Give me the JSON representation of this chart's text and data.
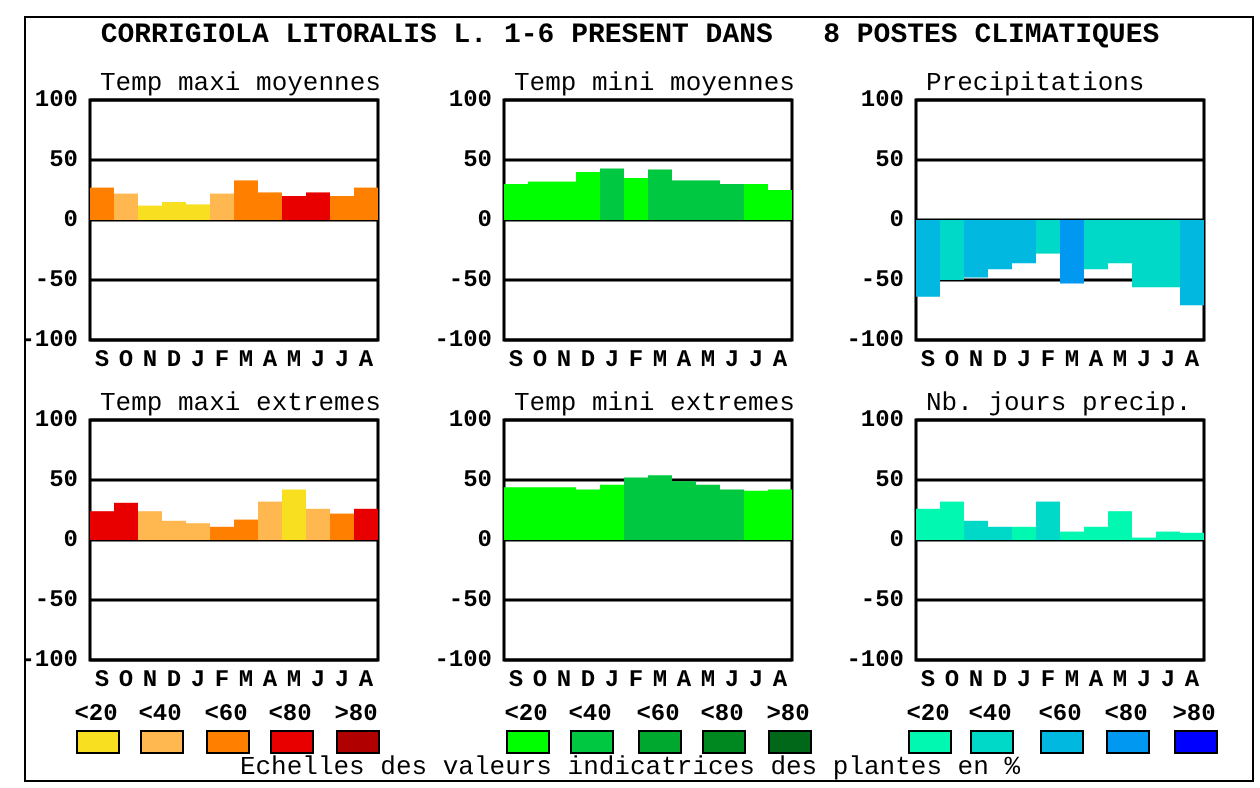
{
  "chart_data": [
    {
      "type": "other",
      "title": "CORRIGIOLA LITORALIS L. 1-6 PRESENT DANS   8 POSTES CLIMATIQUES",
      "annotations": [
        "Echelles des valeurs indicatrices des plantes en %"
      ]
    },
    {
      "type": "bar",
      "title": "Temp maxi moyennes",
      "categories": [
        "S",
        "O",
        "N",
        "D",
        "J",
        "F",
        "M",
        "A",
        "M",
        "J",
        "J",
        "A"
      ],
      "values": [
        27,
        22,
        12,
        15,
        13,
        22,
        33,
        23,
        20,
        23,
        20,
        27
      ],
      "colors": [
        "#ff8000",
        "#ffb850",
        "#f8e020",
        "#f8e020",
        "#f8e020",
        "#ffb850",
        "#ff8000",
        "#ff8000",
        "#e80000",
        "#e80000",
        "#ff8000",
        "#ff8000"
      ],
      "ylim": [
        -100,
        100
      ],
      "yticks": [
        100,
        50,
        0,
        -50,
        -100
      ],
      "grid": "y"
    },
    {
      "type": "bar",
      "title": "Temp mini moyennes",
      "categories": [
        "S",
        "O",
        "N",
        "D",
        "J",
        "F",
        "M",
        "A",
        "M",
        "J",
        "J",
        "A"
      ],
      "values": [
        30,
        32,
        32,
        40,
        43,
        35,
        42,
        33,
        33,
        30,
        30,
        25
      ],
      "colors": [
        "#00ff00",
        "#00ff00",
        "#00ff00",
        "#00ff00",
        "#00c840",
        "#00ff00",
        "#00c840",
        "#00c840",
        "#00c840",
        "#00c840",
        "#00ff00",
        "#00ff00"
      ],
      "ylim": [
        -100,
        100
      ],
      "yticks": [
        100,
        50,
        0,
        -50,
        -100
      ],
      "grid": "y"
    },
    {
      "type": "bar",
      "title": "Precipitations",
      "categories": [
        "S",
        "O",
        "N",
        "D",
        "J",
        "F",
        "M",
        "A",
        "M",
        "J",
        "J",
        "A"
      ],
      "values": [
        -64,
        -50,
        -48,
        -41,
        -36,
        -28,
        -53,
        -41,
        -36,
        -56,
        -56,
        -71
      ],
      "colors": [
        "#00b8e0",
        "#00d8c8",
        "#00b8e0",
        "#00b8e0",
        "#00b8e0",
        "#00d8c8",
        "#0098f0",
        "#00d8c8",
        "#00d8c8",
        "#00d8c8",
        "#00d8c8",
        "#00b8e0"
      ],
      "ylim": [
        -100,
        100
      ],
      "yticks": [
        100,
        50,
        0,
        -50,
        -100
      ],
      "grid": "y"
    },
    {
      "type": "bar",
      "title": "Temp maxi extremes",
      "categories": [
        "S",
        "O",
        "N",
        "D",
        "J",
        "F",
        "M",
        "A",
        "M",
        "J",
        "J",
        "A"
      ],
      "values": [
        24,
        31,
        24,
        16,
        14,
        11,
        17,
        32,
        42,
        26,
        22,
        26
      ],
      "colors": [
        "#e80000",
        "#e80000",
        "#ffb850",
        "#ffb850",
        "#ffb850",
        "#ff8000",
        "#ff8000",
        "#ffb850",
        "#f8e020",
        "#ffb850",
        "#ff8000",
        "#e80000"
      ],
      "ylim": [
        -100,
        100
      ],
      "yticks": [
        100,
        50,
        0,
        -50,
        -100
      ],
      "grid": "y"
    },
    {
      "type": "bar",
      "title": "Temp mini extremes",
      "categories": [
        "S",
        "O",
        "N",
        "D",
        "J",
        "F",
        "M",
        "A",
        "M",
        "J",
        "J",
        "A"
      ],
      "values": [
        44,
        44,
        44,
        42,
        46,
        52,
        54,
        49,
        46,
        42,
        41,
        42
      ],
      "colors": [
        "#00ff00",
        "#00ff00",
        "#00ff00",
        "#00ff00",
        "#00ff00",
        "#00c840",
        "#00c840",
        "#00c840",
        "#00c840",
        "#00c840",
        "#00ff00",
        "#00ff00"
      ],
      "ylim": [
        -100,
        100
      ],
      "yticks": [
        100,
        50,
        0,
        -50,
        -100
      ],
      "grid": "y"
    },
    {
      "type": "bar",
      "title": "Nb. jours precip.",
      "categories": [
        "S",
        "O",
        "N",
        "D",
        "J",
        "F",
        "M",
        "A",
        "M",
        "J",
        "J",
        "A"
      ],
      "values": [
        26,
        32,
        16,
        11,
        11,
        32,
        7,
        11,
        24,
        2,
        7,
        6
      ],
      "colors": [
        "#00f8b0",
        "#00f8b0",
        "#00d8c8",
        "#00d8c8",
        "#00f8b0",
        "#00d8c8",
        "#00f8b0",
        "#00f8b0",
        "#00f8b0",
        "#00f8b0",
        "#00f8b0",
        "#00f8b0"
      ],
      "ylim": [
        -100,
        100
      ],
      "yticks": [
        100,
        50,
        0,
        -50,
        -100
      ],
      "grid": "y"
    },
    {
      "type": "other",
      "categories": [
        "<20",
        "<40",
        "<60",
        "<80",
        ">80"
      ],
      "colors": [
        "#f8e020",
        "#ffb850",
        "#ff8000",
        "#e80000",
        "#b00000"
      ]
    },
    {
      "type": "other",
      "categories": [
        "<20",
        "<40",
        "<60",
        "<80",
        ">80"
      ],
      "colors": [
        "#00ff00",
        "#00c840",
        "#00a830",
        "#008820",
        "#006818"
      ]
    },
    {
      "type": "other",
      "categories": [
        "<20",
        "<40",
        "<60",
        "<80",
        ">80"
      ],
      "colors": [
        "#00f8b0",
        "#00d8c8",
        "#00b8e0",
        "#0098f0",
        "#0000ff"
      ]
    }
  ]
}
